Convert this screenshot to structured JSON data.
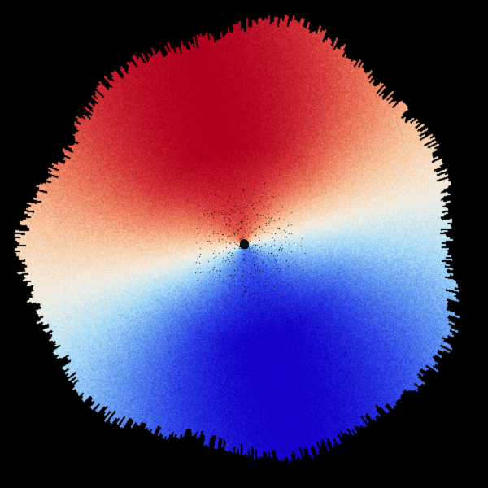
{
  "image": {
    "kind": "doppler-radar-velocity-ppi",
    "background_color": "#000000",
    "palette": [
      "#1400c8",
      "#2a3ce6",
      "#5a90f0",
      "#a8dcf8",
      "#f4f0e6",
      "#f8c8a0",
      "#ec7a5a",
      "#d02c34",
      "#b0001e"
    ],
    "inbound_color": "#1400c8",
    "outbound_color": "#b0001e",
    "zero_color": "#f4f0e6",
    "site_marker_color": "#111111"
  }
}
